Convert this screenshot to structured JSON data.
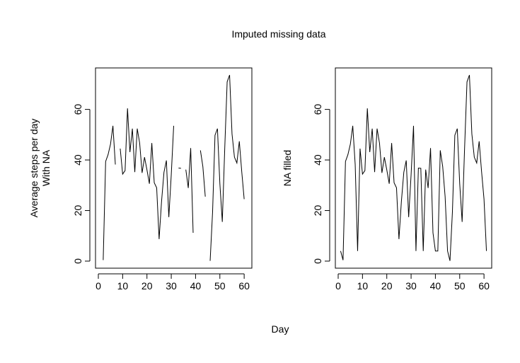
{
  "title": "Imputed missing data",
  "xlabel": "Day",
  "chart_data": [
    {
      "type": "line",
      "ylabel": [
        "Average steps per day",
        "With NA"
      ],
      "xlim": [
        0,
        62
      ],
      "ylim": [
        0,
        75
      ],
      "xticks": [
        "0",
        "10",
        "20",
        "30",
        "40",
        "50",
        "60"
      ],
      "yticks": [
        "0",
        "20",
        "40",
        "60"
      ],
      "x": [
        1,
        2,
        3,
        4,
        5,
        6,
        7,
        8,
        9,
        10,
        11,
        12,
        13,
        14,
        15,
        16,
        17,
        18,
        19,
        20,
        21,
        22,
        23,
        24,
        25,
        26,
        27,
        28,
        29,
        30,
        31,
        32,
        33,
        34,
        35,
        36,
        37,
        38,
        39,
        40,
        41,
        42,
        43,
        44,
        45,
        46,
        47,
        48,
        49,
        50,
        51,
        52,
        53,
        54,
        55,
        56,
        57,
        58,
        59,
        60,
        61
      ],
      "values": [
        null,
        0.4,
        39.4,
        42.1,
        46.2,
        53.5,
        38.2,
        null,
        44.5,
        34.4,
        35.8,
        60.4,
        43.1,
        52.4,
        35.2,
        52.4,
        46.7,
        34.9,
        41.1,
        36.1,
        30.6,
        46.7,
        31.0,
        29.0,
        8.7,
        23.5,
        35.1,
        39.8,
        17.4,
        34.1,
        53.5,
        null,
        36.8,
        36.7,
        null,
        36.2,
        28.9,
        44.7,
        11.2,
        null,
        null,
        43.8,
        37.4,
        25.5,
        null,
        0.1,
        19.4,
        49.8,
        52.4,
        30.7,
        15.5,
        44.4,
        70.9,
        73.6,
        50.3,
        41.1,
        38.8,
        47.4,
        35.4,
        24.5,
        null
      ]
    },
    {
      "type": "line",
      "ylabel": [
        "NA filled"
      ],
      "xlim": [
        0,
        62
      ],
      "ylim": [
        0,
        75
      ],
      "xticks": [
        "0",
        "10",
        "20",
        "30",
        "40",
        "50",
        "60"
      ],
      "yticks": [
        "0",
        "20",
        "40",
        "60"
      ],
      "x": [
        1,
        2,
        3,
        4,
        5,
        6,
        7,
        8,
        9,
        10,
        11,
        12,
        13,
        14,
        15,
        16,
        17,
        18,
        19,
        20,
        21,
        22,
        23,
        24,
        25,
        26,
        27,
        28,
        29,
        30,
        31,
        32,
        33,
        34,
        35,
        36,
        37,
        38,
        39,
        40,
        41,
        42,
        43,
        44,
        45,
        46,
        47,
        48,
        49,
        50,
        51,
        52,
        53,
        54,
        55,
        56,
        57,
        58,
        59,
        60,
        61
      ],
      "values": [
        4.0,
        0.4,
        39.4,
        42.1,
        46.2,
        53.5,
        38.2,
        4.0,
        44.5,
        34.4,
        35.8,
        60.4,
        43.1,
        52.4,
        35.2,
        52.4,
        46.7,
        34.9,
        41.1,
        36.1,
        30.6,
        46.7,
        31.0,
        29.0,
        8.7,
        23.5,
        35.1,
        39.8,
        17.4,
        34.1,
        53.5,
        4.0,
        36.8,
        36.7,
        4.0,
        36.2,
        28.9,
        44.7,
        11.2,
        4.0,
        4.0,
        43.8,
        37.4,
        25.5,
        4.0,
        0.1,
        19.4,
        49.8,
        52.4,
        30.7,
        15.5,
        44.4,
        70.9,
        73.6,
        50.3,
        41.1,
        38.8,
        47.4,
        35.4,
        24.5,
        4.0
      ]
    }
  ]
}
